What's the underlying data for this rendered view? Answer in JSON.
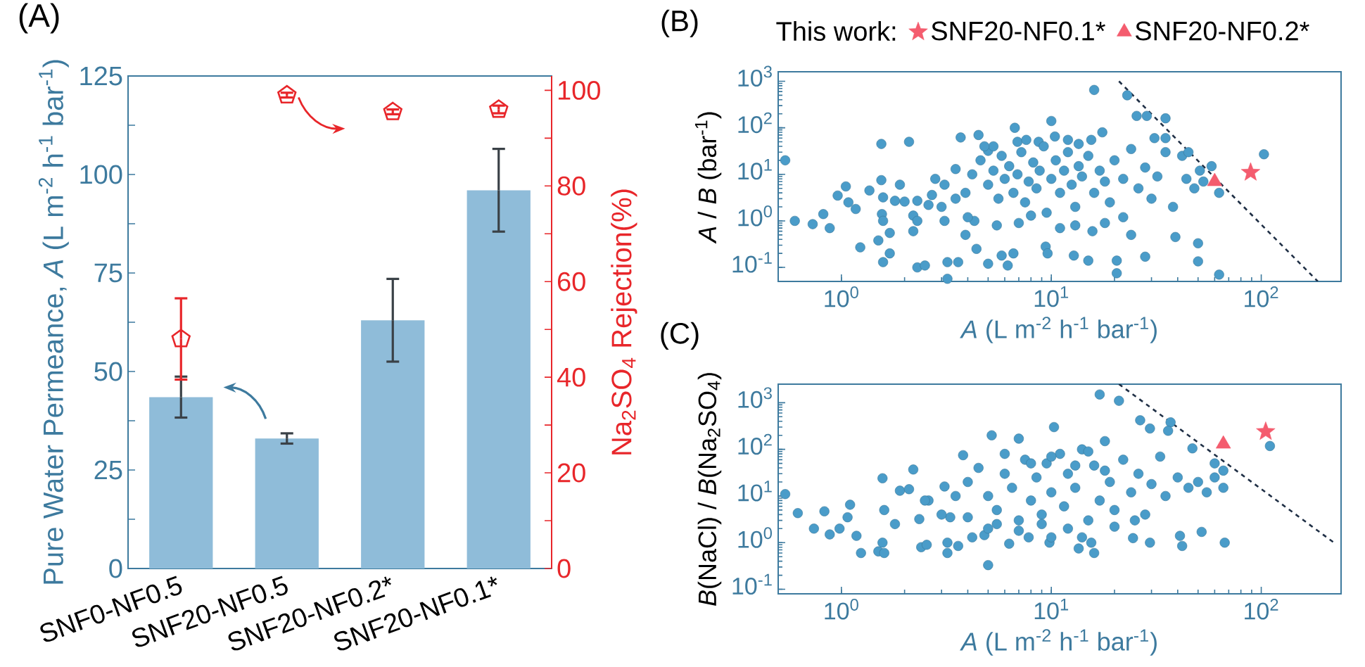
{
  "chart_data": [
    {
      "type": "bar",
      "title": "(A)",
      "categories": [
        "SNF0-NF0.5",
        "SNF20-NF0.5",
        "SNF20-NF0.2*",
        "SNF20-NF0.1*"
      ],
      "ylabel": "Pure Water Permeance, *A* (L m$^{-2}$ h$^{-1}$ bar$^{-1}$)",
      "y2label": "Na$_{2}$SO$_{4}$ Rejection(%)",
      "ylim": [
        0,
        125
      ],
      "yticks": [
        0,
        {
          "value": 12.5,
          "label": null
        },
        25,
        {
          "value": 37.5,
          "label": null
        },
        50,
        {
          "value": 62.5,
          "label": null
        },
        75,
        {
          "value": 87.5,
          "label": null
        },
        100,
        {
          "value": 112.5,
          "label": null
        },
        125
      ],
      "y2lim": [
        0,
        103
      ],
      "y2ticks": [
        0,
        {
          "value": 10,
          "label": null
        },
        20,
        {
          "value": 30,
          "label": null
        },
        40,
        {
          "value": 50,
          "label": null
        },
        60,
        {
          "value": 70,
          "label": null
        },
        80,
        {
          "value": 90,
          "label": null
        },
        100
      ],
      "series": [
        {
          "type": "bar",
          "color": "#8fbcd9",
          "values": [
            43.5,
            33,
            63,
            96
          ],
          "errors": [
            5.2,
            1.3,
            10.5,
            10.5
          ]
        },
        {
          "type": "scatter",
          "axis": "y2",
          "color": "#e8262a",
          "values": [
            48,
            99,
            95.5,
            96
          ],
          "errors": [
            8.5,
            0.5,
            0.5,
            0.8
          ]
        }
      ]
    },
    {
      "type": "scatter",
      "title": "(B)",
      "legend_title": "This work:",
      "legend": "top",
      "log": "xy",
      "xlabel": "*A* (L m$^{-2}$ h$^{-1}$ bar$^{-1}$)",
      "ylabel": "*A* / *B* (bar$^{-1}$)",
      "xlim": [
        0.5,
        240
      ],
      "ylim": [
        0.05,
        1600
      ],
      "xticks": [
        {
          "value": 1,
          "label": "10$^{0}$"
        },
        {
          "value": 10,
          "label": "10$^{1}$"
        },
        {
          "value": 100,
          "label": "10$^{2}$"
        }
      ],
      "yticks": [
        {
          "value": 0.1,
          "label": "10$^{-1}$"
        },
        {
          "value": 1,
          "label": "10$^{0}$"
        },
        {
          "value": 10,
          "label": "10$^{1}$"
        },
        {
          "value": 100,
          "label": "10$^{2}$"
        },
        {
          "value": 1000,
          "label": "10$^{3}$"
        }
      ],
      "series": [
        {
          "marker": "circle",
          "color": "#4a9cc9",
          "x": [
            0.54,
            0.6,
            0.73,
            0.82,
            0.88,
            0.96,
            1.05,
            1.08,
            1.17,
            1.23,
            1.36,
            1.55,
            1.55,
            1.58,
            1.56,
            1.58,
            1.5,
            1.58,
            1.7,
            1.7,
            1.8,
            1.9,
            2.1,
            2.0,
            2.3,
            2.2,
            2.3,
            2.2,
            2.3,
            2.5,
            2.6,
            2.7,
            3.0,
            3.2,
            3.2,
            3.6,
            3.1,
            3.1,
            3.7,
            3.5,
            3.9,
            3.9,
            4.3,
            4.4,
            4.5,
            5.0,
            5.0,
            5.3,
            5.8,
            6.2,
            6.6,
            6.7,
            6.9,
            7.6,
            8.7,
            9.4,
            9.6,
            10,
            10.4,
            12,
            13.5,
            12.8,
            15,
            15.7,
            16,
            17.5,
            20.5,
            20.5,
            23,
            25.5,
            28.5,
            28,
            24,
            31,
            35,
            35,
            39,
            50,
            50,
            48,
            51,
            58,
            63,
            63,
            103,
            42,
            53,
            44,
            4.2,
            4.6,
            5,
            5.3,
            5.6,
            5.8,
            6,
            6.3,
            6.6,
            6.9,
            7.2,
            7.5,
            7.8,
            8.2,
            8.5,
            8.8,
            9.2,
            9.5,
            10,
            10.5,
            11,
            11.5,
            12,
            12.5,
            13,
            13.5,
            14,
            15,
            16,
            17,
            18,
            19,
            20,
            22,
            24,
            26,
            28,
            30,
            32,
            35,
            38,
            4,
            5.5,
            7,
            8,
            11,
            13,
            18,
            22,
            3.5,
            2.8,
            4.8,
            15.5,
            45
          ],
          "values": [
            20,
            1.0,
            0.85,
            1.4,
            0.7,
            3.5,
            5.5,
            2.5,
            1.8,
            0.27,
            4.5,
            45,
            7.5,
            3.2,
            1.4,
            1.0,
            0.38,
            0.13,
            0.55,
            0.2,
            2.7,
            6,
            50,
            2.6,
            2.7,
            1.3,
            1.0,
            0.6,
            0.1,
            0.11,
            2.2,
            3.6,
            2.0,
            0.13,
            0.057,
            0.13,
            6,
            1.0,
            62,
            13,
            4,
            0.5,
            1.0,
            0.25,
            70,
            0.12,
            32,
            40,
            0.18,
            0.11,
            0.2,
            100,
            50,
            55,
            50,
            0.28,
            0.2,
            140,
            65,
            55,
            45,
            0.18,
            0.14,
            0.6,
            650,
            80,
            0.14,
            0.075,
            500,
            180,
            180,
            0.17,
            0.5,
            60,
            60,
            160,
            0.45,
            0.33,
            0.135,
            5,
            12,
            15,
            0.07,
            4,
            27,
            25,
            7,
            8,
            10,
            20,
            6,
            12,
            3,
            25,
            8,
            15,
            4,
            10,
            30,
            2.5,
            7,
            18,
            5,
            12,
            40,
            1.5,
            8,
            20,
            4,
            12,
            30,
            6,
            2,
            15,
            9,
            25,
            4,
            12,
            7,
            2.5,
            20,
            8,
            35,
            5,
            14,
            3,
            9,
            30,
            2,
            1.2,
            0.8,
            0.9,
            1.3,
            0.7,
            0.8,
            0.9,
            1.2,
            3,
            8,
            40,
            55,
            30
          ]
        },
        {
          "type": "line",
          "line_style": "dashed",
          "marker": "none",
          "color": "#1f2f45",
          "x": [
            21,
            186
          ],
          "values": [
            1000,
            0.05
          ]
        },
        {
          "name": "SNF20-NF0.1*",
          "marker": "star",
          "color": "#f45c6e",
          "x": [
            89
          ],
          "values": [
            11
          ]
        },
        {
          "name": "SNF20-NF0.2*",
          "marker": "triangle",
          "color": "#f45c6e",
          "x": [
            60
          ],
          "values": [
            7
          ]
        }
      ]
    },
    {
      "type": "scatter",
      "title": "(C)",
      "log": "xy",
      "xlabel": "*A* (L m$^{-2}$ h$^{-1}$ bar$^{-1}$)",
      "ylabel": "*B*(NaCl) / *B*(Na$_{2}$SO$_{4}$)",
      "xlim": [
        0.5,
        240
      ],
      "ylim": [
        0.08,
        2500
      ],
      "xticks": [
        {
          "value": 1,
          "label": "10$^{0}$"
        },
        {
          "value": 10,
          "label": "10$^{1}$"
        },
        {
          "value": 100,
          "label": "10$^{2}$"
        }
      ],
      "yticks": [
        {
          "value": 0.1,
          "label": "10$^{-1}$"
        },
        {
          "value": 1,
          "label": "10$^{0}$"
        },
        {
          "value": 10,
          "label": "10$^{1}$"
        },
        {
          "value": 100,
          "label": "10$^{2}$"
        },
        {
          "value": 1000,
          "label": "10$^{3}$"
        }
      ],
      "series": [
        {
          "marker": "circle",
          "color": "#4a9cc9",
          "x": [
            0.54,
            0.62,
            0.74,
            0.83,
            0.88,
            0.98,
            1.07,
            1.1,
            1.18,
            1.24,
            1.57,
            1.6,
            1.57,
            1.5,
            1.6,
            1.8,
            1.9,
            2.1,
            2.2,
            2.35,
            2.4,
            2.55,
            2.6,
            3.1,
            3.2,
            3.2,
            3.3,
            3.6,
            3.8,
            4,
            4.2,
            4.8,
            5,
            5.2,
            5.5,
            6.3,
            7,
            7.8,
            9.8,
            10,
            10.3,
            13.5,
            15.5,
            16,
            17,
            21,
            24.5,
            26.5,
            29.5,
            29.5,
            37,
            36,
            41,
            42,
            47,
            52,
            60,
            66,
            66,
            67,
            110,
            4,
            4.5,
            5,
            5.5,
            6,
            6.5,
            7,
            7.5,
            8,
            8.5,
            9,
            9.5,
            10,
            11,
            11.5,
            12,
            13,
            14,
            15,
            16,
            17,
            18,
            19,
            20,
            22,
            24,
            26,
            28,
            30,
            33,
            35,
            40,
            45,
            50,
            55,
            60,
            3.5,
            3,
            2.5,
            5,
            7,
            9,
            12,
            20,
            25,
            14,
            8,
            10,
            13,
            15,
            18,
            6
          ],
          "values": [
            11,
            4.3,
            2.0,
            4.7,
            1.5,
            2.0,
            3.5,
            6.5,
            1.4,
            0.6,
            24,
            5,
            1.0,
            0.65,
            0.6,
            2.5,
            13,
            14,
            37,
            3.2,
            0.8,
            0.9,
            8,
            16,
            1.0,
            0.6,
            3.5,
            0.85,
            75,
            3.5,
            1.3,
            1.45,
            0.33,
            200,
            2.5,
            0.95,
            170,
            1.3,
            1.0,
            1.3,
            300,
            0.75,
            1.0,
            0.6,
            1500,
            1100,
            1.25,
            420,
            280,
            1.0,
            380,
            250,
            1.4,
            0.85,
            105,
            1.7,
            50,
            35,
            15,
            1.0,
            118,
            20,
            40,
            10,
            5,
            30,
            15,
            3,
            60,
            8,
            25,
            4,
            50,
            12,
            80,
            6,
            30,
            15,
            100,
            3,
            45,
            8,
            150,
            20,
            5,
            60,
            12,
            30,
            4,
            18,
            70,
            10,
            25,
            15,
            20,
            12,
            25,
            10,
            4,
            8,
            2,
            1.8,
            2.5,
            2,
            2.2,
            3,
            1.3,
            50,
            70,
            45,
            90,
            35,
            80
          ]
        },
        {
          "type": "line",
          "line_style": "dashed",
          "marker": "none",
          "color": "#1f2f45",
          "x": [
            21,
            222
          ],
          "values": [
            2500,
            1.0
          ]
        },
        {
          "marker": "star",
          "color": "#f45c6e",
          "x": [
            105
          ],
          "values": [
            240
          ]
        },
        {
          "marker": "triangle",
          "color": "#f45c6e",
          "x": [
            66
          ],
          "values": [
            130
          ]
        }
      ]
    }
  ]
}
